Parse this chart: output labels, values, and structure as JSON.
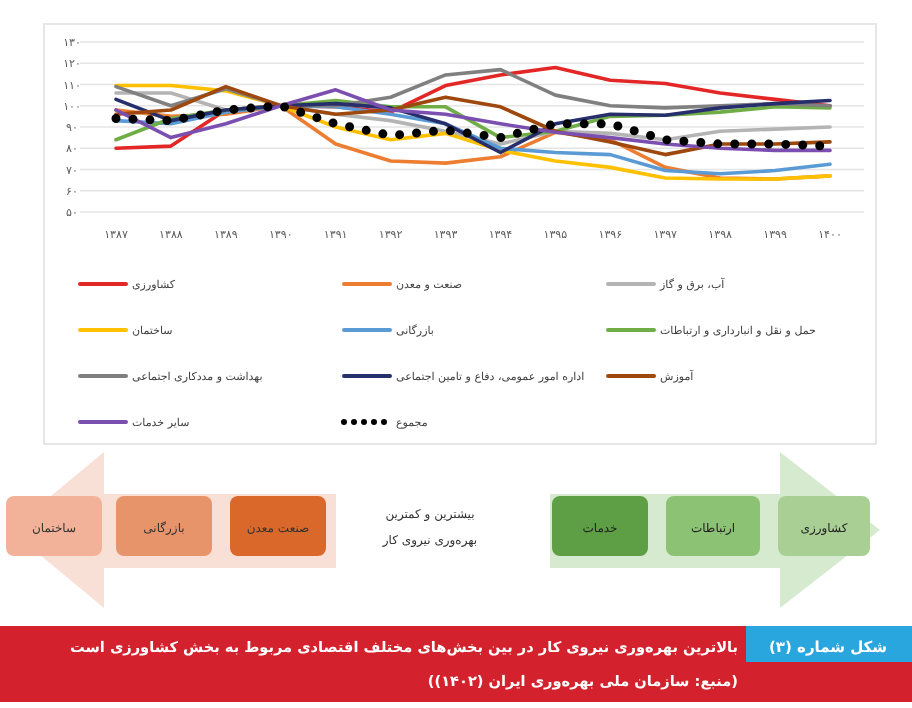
{
  "chart_data": {
    "type": "line",
    "title": "بالاترین بهره‌وری نیروی کار در بین بخش‌های مختلف اقتصادی مربوط به بخش کشاورزی است",
    "categories": [
      "۱۳۸۷",
      "۱۳۸۸",
      "۱۳۸۹",
      "۱۳۹۰",
      "۱۳۹۱",
      "۱۳۹۲",
      "۱۳۹۳",
      "۱۳۹۴",
      "۱۳۹۵",
      "۱۳۹۶",
      "۱۳۹۷",
      "۱۳۹۸",
      "۱۳۹۹",
      "۱۴۰۰"
    ],
    "ylim": [
      50,
      130
    ],
    "yticks": [
      {
        "value": 50,
        "label": "۵۰"
      },
      {
        "value": 60,
        "label": "۶۰"
      },
      {
        "value": 70,
        "label": "۷۰"
      },
      {
        "value": 80,
        "label": "۸۰"
      },
      {
        "value": 90,
        "label": "۹۰"
      },
      {
        "value": 100,
        "label": "۱۰۰"
      },
      {
        "value": 110,
        "label": "۱۱۰"
      },
      {
        "value": 120,
        "label": "۱۲۰"
      },
      {
        "value": 130,
        "label": "۱۳۰"
      }
    ],
    "grid": "y",
    "legend": "bottom",
    "series": [
      {
        "name": "کشاورزی",
        "color": "#e32727",
        "values": [
          80,
          81,
          98,
          100,
          99.5,
          97,
          109.5,
          114.5,
          118,
          112,
          110.5,
          106,
          103,
          100
        ]
      },
      {
        "name": "صنعت و معدن",
        "color": "#ed7d31",
        "values": [
          98,
          95,
          96,
          100,
          82,
          74,
          73,
          76,
          87.5,
          84,
          71,
          66,
          65.5,
          67
        ]
      },
      {
        "name": "آب، برق و گاز",
        "color": "#b4b4b4",
        "values": [
          106,
          106,
          98,
          100,
          96,
          93,
          88,
          82,
          88,
          87,
          84,
          88,
          89,
          90
        ]
      },
      {
        "name": "ساختمان",
        "color": "#ffc000",
        "values": [
          109.5,
          109.5,
          107,
          100,
          90,
          84,
          87,
          79,
          74,
          71,
          66,
          65.5,
          65.5,
          67
        ]
      },
      {
        "name": "بازرگانی",
        "color": "#5b9bd5",
        "values": [
          93,
          91.5,
          97,
          100,
          99.5,
          96,
          91.5,
          80,
          78,
          77,
          69.5,
          68,
          69.5,
          72.5
        ]
      },
      {
        "name": "حمل و نقل و انبارداری و ارتباطات",
        "color": "#70ad47",
        "values": [
          84,
          94,
          98,
          100,
          102.5,
          99.5,
          99.5,
          85,
          88,
          95,
          95.5,
          97,
          99.5,
          99
        ]
      },
      {
        "name": "بهداشت و مددکاری اجتماعی",
        "color": "#808080",
        "values": [
          109,
          100,
          108,
          100,
          100,
          104,
          114.5,
          117,
          105,
          100,
          99,
          100,
          101,
          100
        ]
      },
      {
        "name": "اداره امور عمومی، دفاع و تامین اجتماعی",
        "color": "#262f6b",
        "values": [
          103,
          93,
          98,
          100,
          101,
          99,
          91.5,
          78,
          91.5,
          96,
          95.5,
          99,
          101,
          102.5
        ]
      },
      {
        "name": "آموزش",
        "color": "#9e480e",
        "values": [
          96,
          98,
          109,
          100,
          96,
          98,
          104,
          99.5,
          88,
          83,
          77,
          82,
          82,
          83
        ]
      },
      {
        "name": "سایر خدمات",
        "color": "#7b4fb0",
        "values": [
          98,
          85,
          91.5,
          100,
          107.5,
          98,
          96,
          91.5,
          87.5,
          85,
          82,
          80,
          79,
          79
        ]
      },
      {
        "name": "مجموع",
        "color": "#000000",
        "line_style": "dotted",
        "values": [
          94,
          93,
          98,
          100,
          91.5,
          86,
          88.5,
          85,
          91.5,
          91.5,
          84,
          82,
          82,
          81
        ]
      }
    ],
    "annotations": [
      "ساختمان",
      "بازرگانی",
      "صنعت معدن",
      "بیشترین و کمترین بهره‌وری نیروی کار",
      "خدمات",
      "ارتباطات",
      "کشاورزی",
      "شکل شماره (۳)",
      "(منبع: سازمان ملی بهره‌وری ایران (۱۴۰۲))"
    ]
  }
}
